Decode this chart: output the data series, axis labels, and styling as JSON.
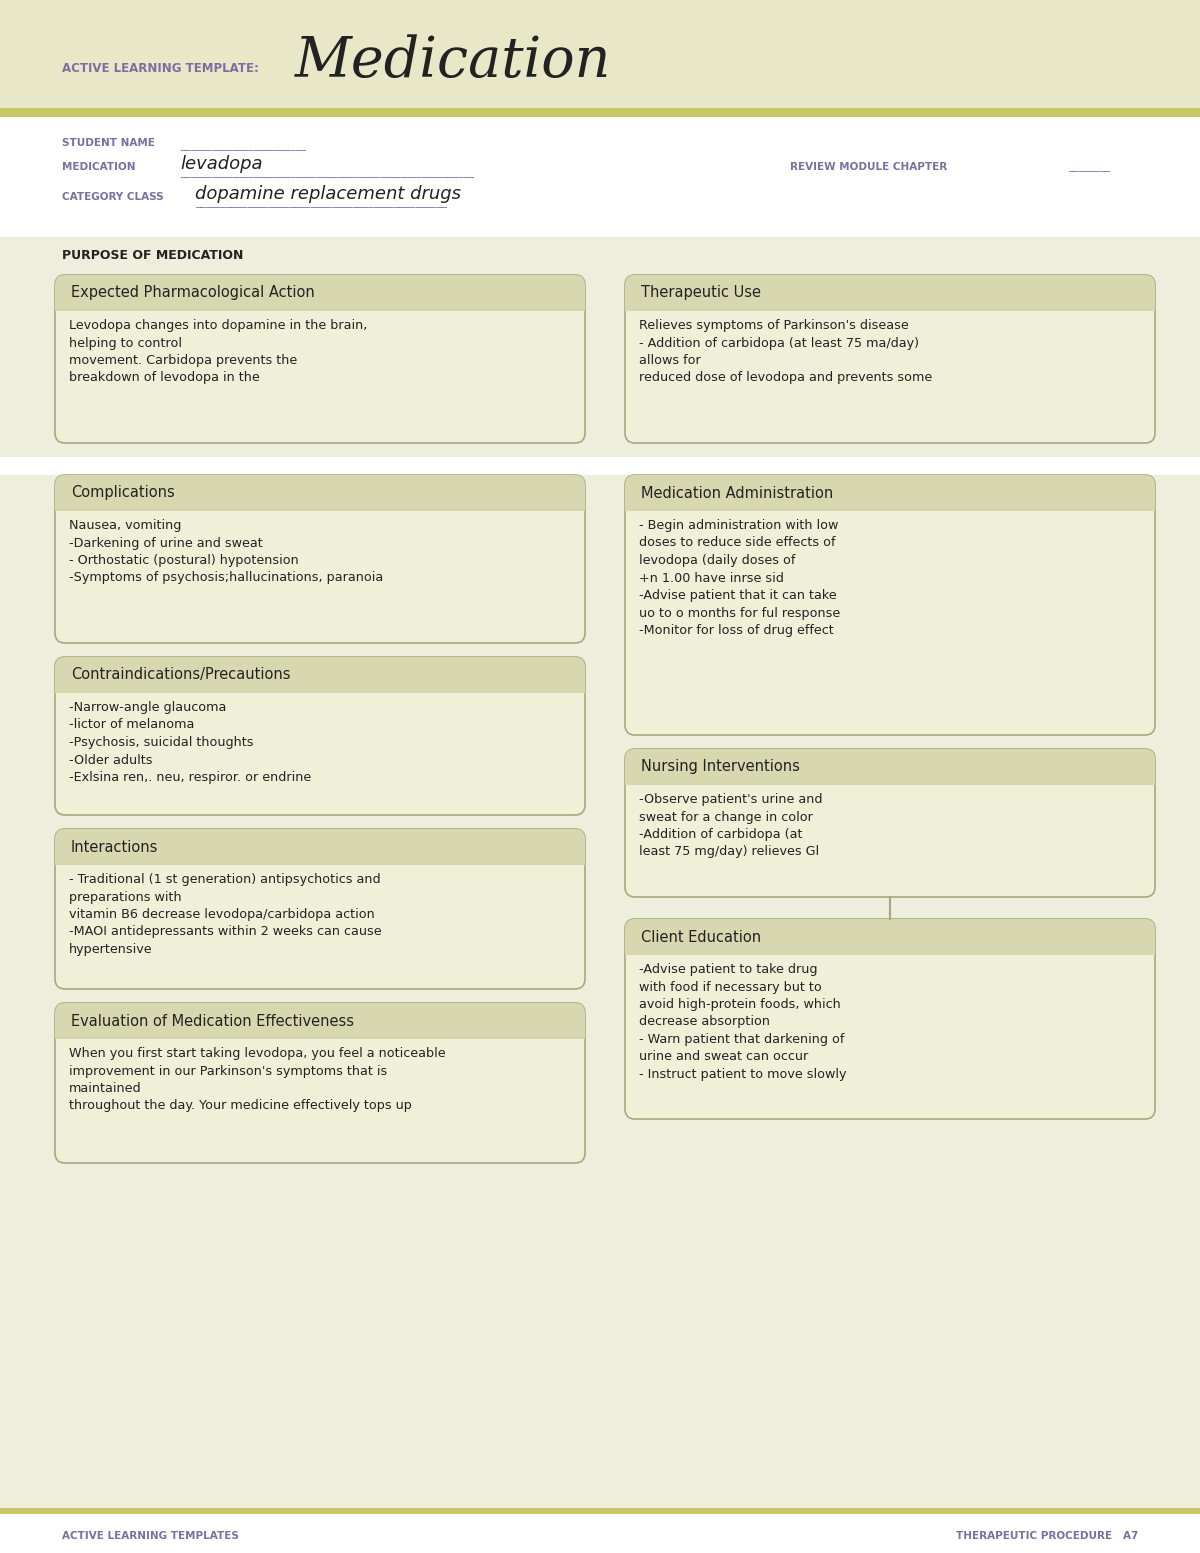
{
  "header_bg": "#e8e8c8",
  "stripe_color": "#c8c864",
  "white": "#ffffff",
  "content_bg": "#eeeedd",
  "box_bg": "#f0f0d8",
  "box_title_bg": "#d8d8b0",
  "box_border": "#a8a880",
  "purple": "#7b6ea0",
  "dark": "#222222",
  "olive": "#888840",
  "title_label": "ACTIVE LEARNING TEMPLATE:",
  "title_main": "Medication",
  "student_name_label": "STUDENT NAME",
  "medication_label": "MEDICATION",
  "medication_value": "levadopa",
  "review_label": "REVIEW MODULE CHAPTER",
  "category_label": "CATEGORY CLASS",
  "category_value": "dopamine replacement drugs",
  "purpose_label": "PURPOSE OF MEDICATION",
  "box1_title": "Expected Pharmacological Action",
  "box1_text": "Levodopa changes into dopamine in the brain,\nhelping to control\nmovement. Carbidopa prevents the\nbreakdown of levodopa in the",
  "box2_title": "Therapeutic Use",
  "box2_text": "Relieves symptoms of Parkinson's disease\n- Addition of carbidopa (at least 75 ma/day)\nallows for\nreduced dose of levodopa and prevents some",
  "box3_title": "Complications",
  "box3_text": "Nausea, vomiting\n-Darkening of urine and sweat\n- Orthostatic (postural) hypotension\n-Symptoms of psychosis;hallucinations, paranoia",
  "box4_title": "Medication Administration",
  "box4_text": "- Begin administration with low\ndoses to reduce side effects of\nlevodopa (daily doses of\n+n 1.00 have inrse sid\n-Advise patient that it can take\nuo to o months for ful response\n-Monitor for loss of drug effect",
  "box5_title": "Contraindications/Precautions",
  "box5_text": "-Narrow-angle glaucoma\n-lictor of melanoma\n-Psychosis, suicidal thoughts\n-Older adults\n-Exlsina ren,. neu, respiror. or endrine",
  "box6_title": "Nursing Interventions",
  "box6_text": "-Observe patient's urine and\nsweat for a change in color\n-Addition of carbidopa (at\nleast 75 mg/day) relieves Gl",
  "box7_title": "Interactions",
  "box7_text": "- Traditional (1 st generation) antipsychotics and\npreparations with\nvitamin B6 decrease levodopa/carbidopa action\n-MAOI antidepressants within 2 weeks can cause\nhypertensive",
  "box8_title": "Client Education",
  "box8_text": "-Advise patient to take drug\nwith food if necessary but to\navoid high-protein foods, which\ndecrease absorption\n- Warn patient that darkening of\nurine and sweat can occur\n- Instruct patient to move slowly",
  "box9_title": "Evaluation of Medication Effectiveness",
  "box9_text": "When you first start taking levodopa, you feel a noticeable\nimprovement in our Parkinson's symptoms that is\nmaintained\nthroughout the day. Your medicine effectively tops up",
  "footer_left": "ACTIVE LEARNING TEMPLATES",
  "footer_right": "THERAPEUTIC PROCEDURE   A7"
}
